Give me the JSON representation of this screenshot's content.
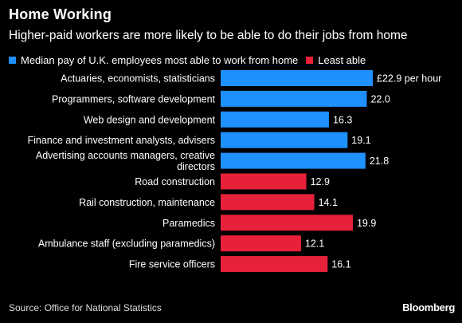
{
  "header": {
    "title": "Home Working",
    "subtitle": "Higher-paid workers are more likely to be able to do their jobs from home"
  },
  "legend": [
    {
      "label": "Median pay of U.K. employees most able to work from home",
      "color": "#1E90FF"
    },
    {
      "label": "Least able",
      "color": "#E8213A"
    }
  ],
  "chart_data": {
    "type": "bar",
    "orientation": "horizontal",
    "categories": [
      [
        "Actuaries, economists, statisticians"
      ],
      [
        "Programmers, software development"
      ],
      [
        "Web design and development"
      ],
      [
        "Finance and investment analysts, advisers"
      ],
      [
        "Advertising accounts managers, creative",
        "directors"
      ],
      [
        "Road construction"
      ],
      [
        "Rail construction, maintenance"
      ],
      [
        "Paramedics"
      ],
      [
        "Ambulance staff (excluding paramedics)"
      ],
      [
        "Fire service officers"
      ]
    ],
    "values": [
      22.9,
      22.0,
      16.3,
      19.1,
      21.8,
      12.9,
      14.1,
      19.9,
      12.1,
      16.1
    ],
    "value_labels": [
      "£22.9 per hour",
      "22.0",
      "16.3",
      "19.1",
      "21.8",
      "12.9",
      "14.1",
      "19.9",
      "12.1",
      "16.1"
    ],
    "groups": [
      "most",
      "most",
      "most",
      "most",
      "most",
      "least",
      "least",
      "least",
      "least",
      "least"
    ],
    "colors": {
      "most": "#1E90FF",
      "least": "#E8213A"
    },
    "xlim": [
      0,
      22.9
    ],
    "grid": false
  },
  "footer": {
    "source": "Source: Office for National Statistics",
    "brand": "Bloomberg"
  }
}
